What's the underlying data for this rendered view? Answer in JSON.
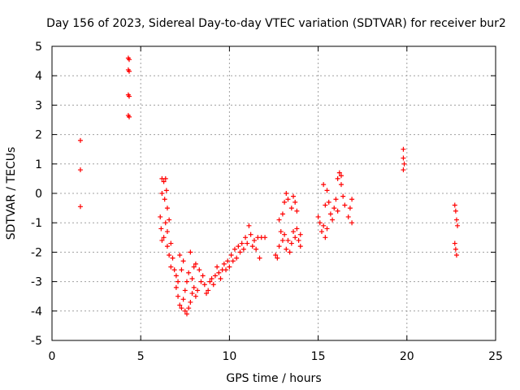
{
  "chart_data": {
    "type": "scatter",
    "title": "Day 156 of 2023, Sidereal Day-to-day VTEC variation (SDTVAR) for receiver bur2",
    "xlabel": "GPS time / hours",
    "ylabel": "SDTVAR / TECUs",
    "xlim": [
      0,
      25
    ],
    "ylim": [
      -5,
      5
    ],
    "xticks": [
      0,
      5,
      10,
      15,
      20,
      25
    ],
    "yticks": [
      -5,
      -4,
      -3,
      -2,
      -1,
      0,
      1,
      2,
      3,
      4,
      5
    ],
    "grid": true,
    "marker": "+",
    "series": [
      {
        "name": "bur2",
        "color": "#ff0000",
        "points": [
          [
            1.6,
            1.8
          ],
          [
            1.6,
            0.8
          ],
          [
            1.6,
            -0.45
          ],
          [
            4.3,
            4.6
          ],
          [
            4.35,
            4.55
          ],
          [
            4.3,
            4.2
          ],
          [
            4.35,
            4.15
          ],
          [
            4.3,
            3.35
          ],
          [
            4.35,
            3.3
          ],
          [
            4.3,
            2.65
          ],
          [
            4.35,
            2.6
          ],
          [
            6.2,
            0.5
          ],
          [
            6.3,
            0.4
          ],
          [
            6.4,
            0.5
          ],
          [
            6.2,
            0.0
          ],
          [
            6.35,
            -0.2
          ],
          [
            6.45,
            0.1
          ],
          [
            6.5,
            -0.5
          ],
          [
            6.1,
            -0.8
          ],
          [
            6.15,
            -1.2
          ],
          [
            6.2,
            -1.6
          ],
          [
            6.3,
            -1.5
          ],
          [
            6.4,
            -1.0
          ],
          [
            6.5,
            -1.3
          ],
          [
            6.6,
            -0.9
          ],
          [
            6.5,
            -1.8
          ],
          [
            6.6,
            -2.1
          ],
          [
            6.7,
            -1.7
          ],
          [
            6.8,
            -2.2
          ],
          [
            6.7,
            -2.5
          ],
          [
            6.9,
            -2.6
          ],
          [
            7.0,
            -2.8
          ],
          [
            7.0,
            -3.2
          ],
          [
            7.1,
            -3.5
          ],
          [
            7.2,
            -3.8
          ],
          [
            7.3,
            -3.9
          ],
          [
            7.4,
            -3.6
          ],
          [
            7.5,
            -4.0
          ],
          [
            7.6,
            -4.1
          ],
          [
            7.7,
            -3.9
          ],
          [
            7.8,
            -3.7
          ],
          [
            7.9,
            -3.4
          ],
          [
            7.5,
            -3.3
          ],
          [
            7.6,
            -3.0
          ],
          [
            7.7,
            -2.7
          ],
          [
            7.8,
            -2.0
          ],
          [
            7.3,
            -2.6
          ],
          [
            7.4,
            -2.3
          ],
          [
            7.2,
            -2.1
          ],
          [
            7.1,
            -3.0
          ],
          [
            8.0,
            -3.2
          ],
          [
            8.1,
            -3.5
          ],
          [
            8.2,
            -3.3
          ],
          [
            7.9,
            -2.9
          ],
          [
            8.0,
            -2.5
          ],
          [
            8.1,
            -2.4
          ],
          [
            8.3,
            -2.6
          ],
          [
            8.4,
            -3.0
          ],
          [
            8.5,
            -2.8
          ],
          [
            8.6,
            -3.1
          ],
          [
            8.7,
            -3.4
          ],
          [
            8.8,
            -3.3
          ],
          [
            8.9,
            -3.0
          ],
          [
            9.0,
            -2.9
          ],
          [
            9.1,
            -3.1
          ],
          [
            9.2,
            -2.8
          ],
          [
            9.3,
            -2.5
          ],
          [
            9.4,
            -2.7
          ],
          [
            9.5,
            -2.9
          ],
          [
            9.6,
            -2.6
          ],
          [
            9.7,
            -2.4
          ],
          [
            9.8,
            -2.6
          ],
          [
            9.9,
            -2.3
          ],
          [
            10.0,
            -2.5
          ],
          [
            10.1,
            -2.1
          ],
          [
            10.2,
            -2.3
          ],
          [
            10.3,
            -1.9
          ],
          [
            10.4,
            -2.2
          ],
          [
            10.5,
            -1.8
          ],
          [
            10.6,
            -2.0
          ],
          [
            10.7,
            -1.7
          ],
          [
            10.8,
            -1.9
          ],
          [
            10.9,
            -1.5
          ],
          [
            11.0,
            -1.7
          ],
          [
            11.1,
            -1.1
          ],
          [
            11.2,
            -1.4
          ],
          [
            11.3,
            -1.8
          ],
          [
            11.4,
            -1.6
          ],
          [
            11.5,
            -1.9
          ],
          [
            11.6,
            -1.5
          ],
          [
            11.7,
            -2.2
          ],
          [
            11.8,
            -1.5
          ],
          [
            12.0,
            -1.5
          ],
          [
            12.6,
            -2.1
          ],
          [
            12.7,
            -2.2
          ],
          [
            12.8,
            -1.8
          ],
          [
            12.9,
            -1.3
          ],
          [
            13.0,
            -1.6
          ],
          [
            12.8,
            -0.9
          ],
          [
            13.0,
            -0.7
          ],
          [
            13.1,
            -0.3
          ],
          [
            13.2,
            0.0
          ],
          [
            13.3,
            -0.2
          ],
          [
            13.1,
            -1.4
          ],
          [
            13.2,
            -1.9
          ],
          [
            13.3,
            -1.6
          ],
          [
            13.4,
            -2.0
          ],
          [
            13.5,
            -1.7
          ],
          [
            13.6,
            -1.3
          ],
          [
            13.7,
            -1.5
          ],
          [
            13.8,
            -1.2
          ],
          [
            13.9,
            -1.6
          ],
          [
            14.0,
            -1.4
          ],
          [
            13.5,
            -0.5
          ],
          [
            13.6,
            -0.1
          ],
          [
            13.7,
            -0.3
          ],
          [
            13.8,
            -0.6
          ],
          [
            14.0,
            -1.8
          ],
          [
            15.0,
            -0.8
          ],
          [
            15.1,
            -1.0
          ],
          [
            15.2,
            -1.3
          ],
          [
            15.3,
            -1.1
          ],
          [
            15.4,
            -1.5
          ],
          [
            15.5,
            -1.2
          ],
          [
            15.4,
            -0.4
          ],
          [
            15.3,
            0.3
          ],
          [
            15.5,
            0.1
          ],
          [
            15.6,
            -0.3
          ],
          [
            15.7,
            -0.7
          ],
          [
            15.8,
            -0.9
          ],
          [
            15.9,
            -0.5
          ],
          [
            16.0,
            -0.2
          ],
          [
            16.1,
            0.5
          ],
          [
            16.2,
            0.7
          ],
          [
            16.3,
            0.3
          ],
          [
            16.4,
            -0.1
          ],
          [
            16.5,
            -0.4
          ],
          [
            16.3,
            0.6
          ],
          [
            16.1,
            -0.6
          ],
          [
            16.7,
            -0.8
          ],
          [
            16.8,
            -0.5
          ],
          [
            16.9,
            -1.0
          ],
          [
            16.9,
            -0.2
          ],
          [
            19.8,
            1.5
          ],
          [
            19.8,
            1.2
          ],
          [
            19.85,
            1.0
          ],
          [
            19.8,
            0.8
          ],
          [
            22.7,
            -0.4
          ],
          [
            22.75,
            -0.6
          ],
          [
            22.8,
            -0.9
          ],
          [
            22.85,
            -1.1
          ],
          [
            22.7,
            -1.7
          ],
          [
            22.75,
            -1.9
          ],
          [
            22.8,
            -2.1
          ]
        ]
      }
    ]
  }
}
